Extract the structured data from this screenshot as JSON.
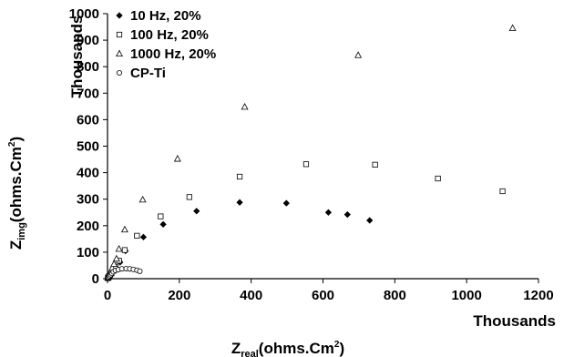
{
  "chart_data": {
    "type": "scatter",
    "xlabel": {
      "base": "Z",
      "sub": "real",
      "rest": "(ohms.Cm",
      "sup": "2",
      "close": ")"
    },
    "ylabel": {
      "base": "Z",
      "sub": "img",
      "rest": "(ohms.Cm",
      "sup": "2",
      "close": ")"
    },
    "x_multiplier_label": "Thousands",
    "y_multiplier_label": "Thousands",
    "xlim": [
      0,
      1200
    ],
    "ylim": [
      0,
      1000
    ],
    "x_ticks": [
      "0",
      "200",
      "400",
      "600",
      "800",
      "1000",
      "1200"
    ],
    "y_ticks": [
      "0",
      "100",
      "200",
      "300",
      "400",
      "500",
      "600",
      "700",
      "800",
      "900",
      "1000"
    ],
    "legend_position": "top-left",
    "grid": false,
    "series": [
      {
        "name": "10 Hz, 20%",
        "marker": "diamond-filled",
        "points": [
          [
            0.5,
            1
          ],
          [
            1,
            3
          ],
          [
            2,
            5
          ],
          [
            3,
            7
          ],
          [
            5,
            11
          ],
          [
            8,
            15
          ],
          [
            12,
            20
          ],
          [
            18,
            28
          ],
          [
            25,
            40
          ],
          [
            35,
            62
          ],
          [
            50,
            105
          ],
          [
            100,
            157
          ],
          [
            155,
            205
          ],
          [
            248,
            255
          ],
          [
            368,
            288
          ],
          [
            498,
            285
          ],
          [
            615,
            250
          ],
          [
            668,
            242
          ],
          [
            730,
            220
          ]
        ]
      },
      {
        "name": "100 Hz, 20%",
        "marker": "square-open",
        "points": [
          [
            1,
            2
          ],
          [
            2,
            5
          ],
          [
            4,
            9
          ],
          [
            7,
            14
          ],
          [
            11,
            20
          ],
          [
            16,
            30
          ],
          [
            22,
            45
          ],
          [
            32,
            68
          ],
          [
            48,
            108
          ],
          [
            82,
            162
          ],
          [
            148,
            235
          ],
          [
            228,
            308
          ],
          [
            368,
            385
          ],
          [
            553,
            432
          ],
          [
            745,
            430
          ],
          [
            920,
            378
          ],
          [
            1100,
            330
          ]
        ]
      },
      {
        "name": "1000 Hz, 20%",
        "marker": "triangle-open",
        "points": [
          [
            1,
            3
          ],
          [
            2,
            6
          ],
          [
            4,
            11
          ],
          [
            6,
            18
          ],
          [
            9,
            27
          ],
          [
            13,
            40
          ],
          [
            18,
            55
          ],
          [
            25,
            75
          ],
          [
            32,
            112
          ],
          [
            48,
            185
          ],
          [
            98,
            298
          ],
          [
            195,
            452
          ],
          [
            382,
            648
          ],
          [
            698,
            843
          ],
          [
            1128,
            945
          ]
        ]
      },
      {
        "name": "CP-Ti",
        "marker": "circle-open",
        "points": [
          [
            1,
            2
          ],
          [
            2,
            4
          ],
          [
            4,
            7
          ],
          [
            6,
            11
          ],
          [
            9,
            15
          ],
          [
            12,
            20
          ],
          [
            16,
            26
          ],
          [
            22,
            31
          ],
          [
            30,
            34
          ],
          [
            40,
            37
          ],
          [
            52,
            38
          ],
          [
            62,
            37
          ],
          [
            72,
            35
          ],
          [
            82,
            32
          ],
          [
            90,
            28
          ]
        ]
      }
    ]
  }
}
